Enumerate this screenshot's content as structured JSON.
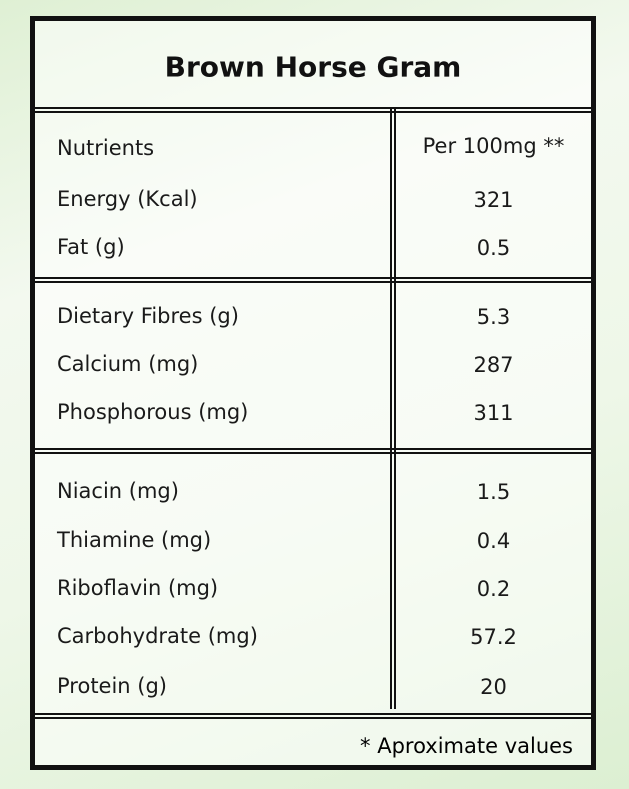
{
  "title": "Brown Horse Gram",
  "header": [
    "Nutrients",
    "Per 100mg **"
  ],
  "sections": [
    [
      [
        "Energy (Kcal)",
        "321"
      ],
      [
        "Fat (g)",
        "0.5"
      ]
    ],
    [
      [
        "Dietary Fibres (g)",
        "5.3"
      ],
      [
        "Calcium (mg)",
        "287"
      ],
      [
        "Phosphorous (mg)",
        "311"
      ]
    ],
    [
      [
        "Niacin (mg)",
        "1.5"
      ],
      [
        "Thiamine (mg)",
        "0.4"
      ],
      [
        "Riboflavin (mg)",
        "0.2"
      ],
      [
        "Carbohydrate (mg)",
        "57.2"
      ],
      [
        "Protein (g)",
        "20"
      ]
    ]
  ],
  "footnote": "* Aproximate values"
}
